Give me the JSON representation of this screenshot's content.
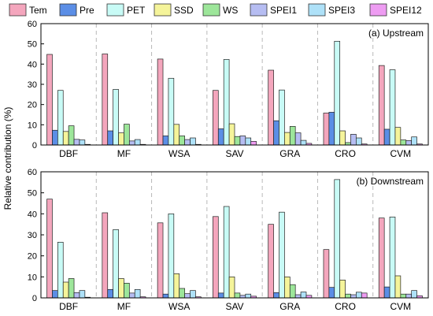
{
  "chart_data": {
    "type": "bar",
    "legend": {
      "placement": "top",
      "entries": [
        {
          "name": "Tem",
          "color": "#f4a6bd"
        },
        {
          "name": "Pre",
          "color": "#5b8ee6"
        },
        {
          "name": "PET",
          "color": "#c8fbf6"
        },
        {
          "name": "SSD",
          "color": "#f5f49a"
        },
        {
          "name": "WS",
          "color": "#9de69a"
        },
        {
          "name": "SPEI1",
          "color": "#b6bdf2"
        },
        {
          "name": "SPEI3",
          "color": "#aee1f8"
        },
        {
          "name": "SPEI12",
          "color": "#ee9cf2"
        }
      ]
    },
    "ylabel": "Relative contribution (%)",
    "ylim": [
      0,
      60
    ],
    "yticks": [
      "0",
      "10",
      "20",
      "30",
      "40",
      "50",
      "60"
    ],
    "categories": [
      "DBF",
      "MF",
      "WSA",
      "SAV",
      "GRA",
      "CRO",
      "CVM"
    ],
    "panels": [
      {
        "title": "(a) Upstream",
        "series": [
          {
            "name": "Tem",
            "values": [
              44.8,
              45.0,
              42.5,
              27.0,
              37.0,
              15.8,
              39.3
            ]
          },
          {
            "name": "Pre",
            "values": [
              7.3,
              7.0,
              4.5,
              8.0,
              12.0,
              16.2,
              7.8
            ]
          },
          {
            "name": "PET",
            "values": [
              27.0,
              27.5,
              33.0,
              42.3,
              27.2,
              51.3,
              37.2
            ]
          },
          {
            "name": "SSD",
            "values": [
              6.7,
              6.0,
              10.2,
              10.5,
              6.2,
              7.0,
              8.7
            ]
          },
          {
            "name": "WS",
            "values": [
              9.5,
              10.3,
              4.5,
              4.2,
              9.2,
              1.2,
              2.5
            ]
          },
          {
            "name": "SPEI1",
            "values": [
              2.8,
              2.0,
              2.7,
              4.5,
              6.0,
              5.3,
              2.2
            ]
          },
          {
            "name": "SPEI3",
            "values": [
              2.5,
              2.7,
              3.5,
              3.5,
              2.3,
              3.5,
              4.0
            ]
          },
          {
            "name": "SPEI12",
            "values": [
              0.3,
              0.3,
              0.3,
              1.8,
              0.8,
              0.5,
              0.5
            ]
          }
        ]
      },
      {
        "title": "(b) Downstream",
        "series": [
          {
            "name": "Tem",
            "values": [
              47.0,
              40.5,
              35.7,
              38.7,
              35.0,
              23.0,
              38.0
            ]
          },
          {
            "name": "Pre",
            "values": [
              3.5,
              4.0,
              1.8,
              2.3,
              2.5,
              5.0,
              5.2
            ]
          },
          {
            "name": "PET",
            "values": [
              26.5,
              32.5,
              40.0,
              43.5,
              40.8,
              56.3,
              38.5
            ]
          },
          {
            "name": "SSD",
            "values": [
              7.5,
              9.2,
              11.5,
              10.0,
              10.0,
              8.5,
              10.5
            ]
          },
          {
            "name": "WS",
            "values": [
              9.2,
              7.0,
              4.5,
              2.3,
              6.3,
              1.8,
              1.8
            ]
          },
          {
            "name": "SPEI1",
            "values": [
              2.5,
              2.3,
              2.0,
              1.2,
              1.5,
              1.5,
              1.8
            ]
          },
          {
            "name": "SPEI3",
            "values": [
              3.5,
              4.0,
              3.5,
              1.8,
              2.8,
              2.7,
              3.5
            ]
          },
          {
            "name": "SPEI12",
            "values": [
              0.3,
              0.5,
              0.5,
              0.8,
              1.2,
              2.3,
              1.0
            ]
          }
        ]
      }
    ]
  }
}
